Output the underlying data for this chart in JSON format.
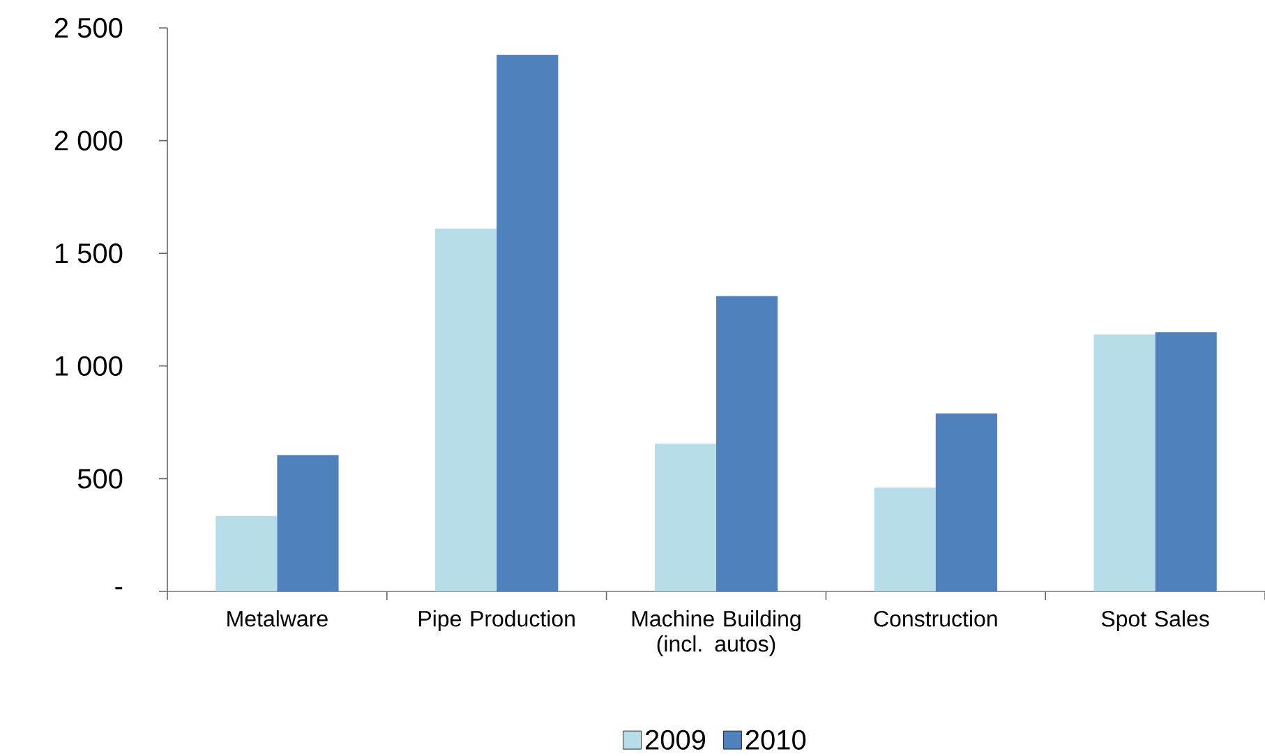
{
  "chart_data": {
    "type": "bar",
    "categories": [
      "Metalware",
      "Pipe Production",
      "Machine Building (incl. autos)",
      "Construction",
      "Spot Sales"
    ],
    "series": [
      {
        "name": "2009",
        "color": "#b7dde8",
        "values": [
          335,
          1610,
          655,
          460,
          1140
        ]
      },
      {
        "name": "2010",
        "color": "#4f81bd",
        "values": [
          605,
          2380,
          1310,
          790,
          1150
        ]
      }
    ],
    "ylim": [
      0,
      2500
    ],
    "yticks": [
      {
        "value": 0,
        "label": "-"
      },
      500,
      {
        "value": 1000,
        "label": "1 000"
      },
      {
        "value": 1500,
        "label": "1 500"
      },
      {
        "value": 2000,
        "label": "2 000"
      },
      {
        "value": 2500,
        "label": "2 500"
      }
    ],
    "grid": false,
    "legend": "bottom"
  }
}
